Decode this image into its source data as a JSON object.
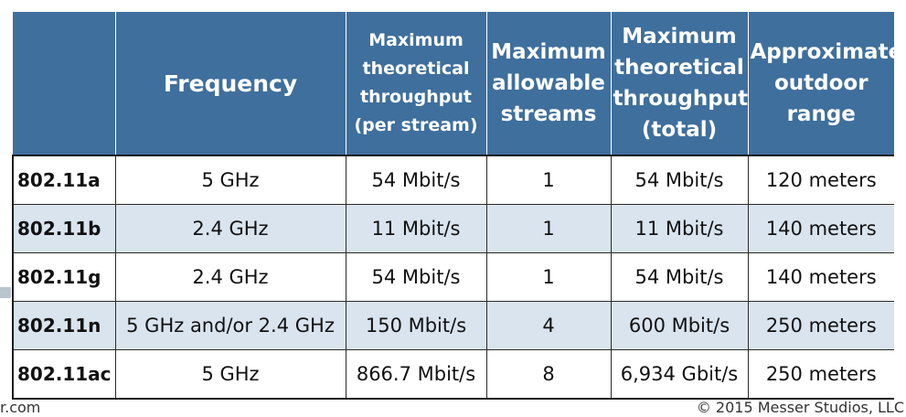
{
  "table": {
    "headers": [
      "",
      "Frequency",
      "Maximum theoretical throughput (per stream)",
      "Maximum allowable streams",
      "Maximum theoretical throughput (total)",
      "Approximate outdoor range"
    ],
    "rows": [
      [
        "802.11a",
        "5 GHz",
        "54 Mbit/s",
        "1",
        "54 Mbit/s",
        "120 meters"
      ],
      [
        "802.11b",
        "2.4 GHz",
        "11 Mbit/s",
        "1",
        "11 Mbit/s",
        "140 meters"
      ],
      [
        "802.11g",
        "2.4 GHz",
        "54 Mbit/s",
        "1",
        "54 Mbit/s",
        "140 meters"
      ],
      [
        "802.11n",
        "5 GHz and/or 2.4 GHz",
        "150 Mbit/s",
        "4",
        "600 Mbit/s",
        "250 meters"
      ],
      [
        "802.11ac",
        "5 GHz",
        "866.7 Mbit/s",
        "8",
        "6,934 Gbit/s",
        "250 meters"
      ]
    ]
  },
  "footer": {
    "left": "r.com",
    "right": "© 2015 Messer Studios, LLC"
  },
  "colors": {
    "header_bg": "#3f6f9c",
    "header_text": "#ffffff",
    "alt_row_bg": "#d9e4ef",
    "row_bg": "#ffffff"
  }
}
